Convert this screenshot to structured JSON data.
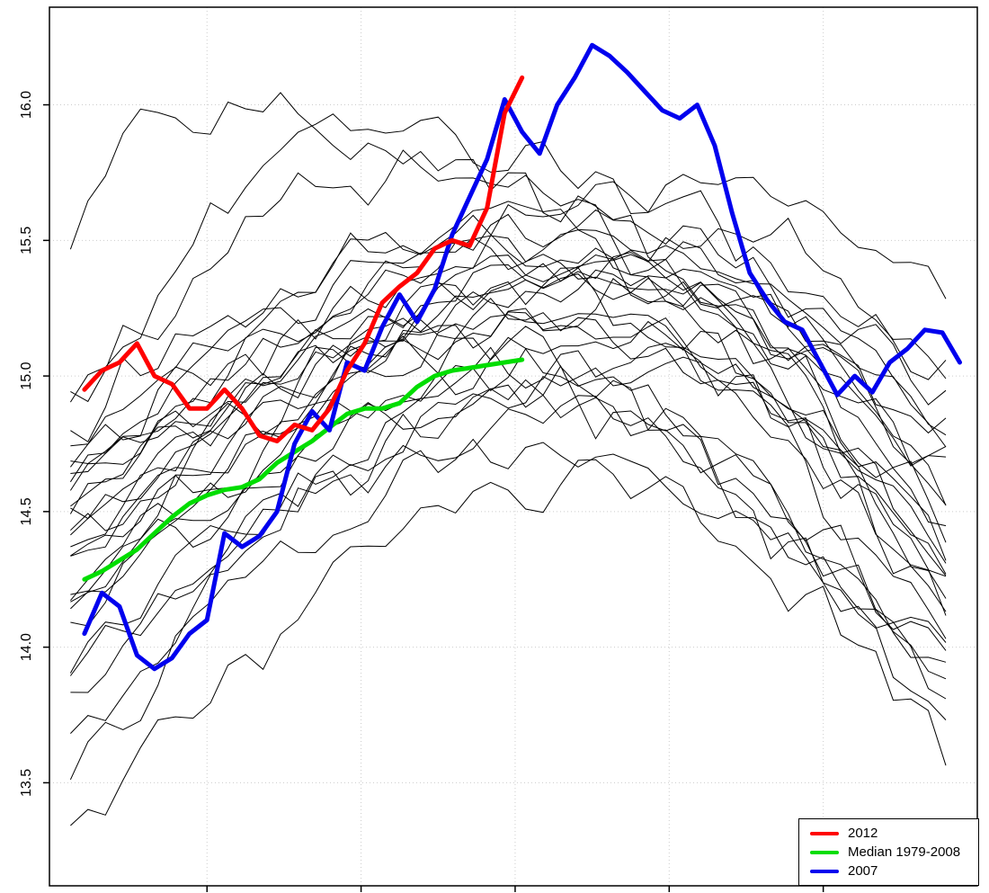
{
  "chart_data": {
    "type": "line",
    "title": "",
    "xlabel": "",
    "ylabel": "",
    "grid": true,
    "legend_position": "bottom-right",
    "x_domain_weeks": [
      0,
      53
    ],
    "y_domain": [
      13.12,
      16.36
    ],
    "y_ticks": [
      {
        "value": 13.5,
        "label": "13.5"
      },
      {
        "value": 14.0,
        "label": "14.0"
      },
      {
        "value": 14.5,
        "label": "14.5"
      },
      {
        "value": 15.0,
        "label": "15.0"
      },
      {
        "value": 15.5,
        "label": "15.5"
      },
      {
        "value": 16.0,
        "label": "16.0"
      }
    ],
    "x_ticks_weeks": [
      9,
      17.8,
      26.6,
      35.4,
      44.2
    ],
    "draw_order": [
      1,
      2,
      0
    ],
    "series": [
      {
        "name": "2012",
        "color": "#ff0000",
        "width": 5,
        "x_start_week": 2,
        "x_step": 1,
        "values": [
          14.95,
          15.02,
          15.05,
          15.12,
          15.0,
          14.97,
          14.88,
          14.88,
          14.95,
          14.88,
          14.78,
          14.76,
          14.82,
          14.8,
          14.88,
          15.02,
          15.12,
          15.27,
          15.33,
          15.38,
          15.47,
          15.5,
          15.48,
          15.62,
          15.97,
          16.1
        ]
      },
      {
        "name": "Median 1979-2008",
        "color": "#00dd00",
        "width": 5,
        "x_start_week": 2,
        "x_step": 1,
        "values": [
          14.25,
          14.28,
          14.32,
          14.36,
          14.42,
          14.48,
          14.53,
          14.56,
          14.58,
          14.59,
          14.62,
          14.68,
          14.72,
          14.76,
          14.81,
          14.86,
          14.88,
          14.88,
          14.9,
          14.96,
          15.0,
          15.02,
          15.03,
          15.04,
          15.05,
          15.06
        ]
      },
      {
        "name": "2007",
        "color": "#0000ee",
        "width": 5,
        "x_start_week": 2,
        "x_step": 1,
        "values": [
          14.05,
          14.2,
          14.15,
          13.97,
          13.92,
          13.96,
          14.05,
          14.1,
          14.42,
          14.37,
          14.41,
          14.5,
          14.75,
          14.87,
          14.8,
          15.05,
          15.02,
          15.18,
          15.3,
          15.2,
          15.32,
          15.52,
          15.66,
          15.8,
          16.02,
          15.9,
          15.82,
          16.0,
          16.1,
          16.22,
          16.18,
          16.12,
          16.05,
          15.98,
          15.95,
          16.0,
          15.85,
          15.6,
          15.38,
          15.28,
          15.2,
          15.17,
          15.05,
          14.93,
          15.0,
          14.94,
          15.05,
          15.1,
          15.17,
          15.16,
          15.05
        ]
      }
    ],
    "background_series": {
      "color": "#000000",
      "width": 1,
      "lines": [
        {
          "s": 15.5,
          "p": 16.0,
          "pw": 7,
          "e": 14.7,
          "a": 0.1,
          "seed": 1
        },
        {
          "s": 14.9,
          "p": 15.75,
          "pw": 20,
          "e": 14.4,
          "a": 0.09,
          "seed": 2
        },
        {
          "s": 14.8,
          "p": 15.5,
          "pw": 24,
          "e": 14.6,
          "a": 0.1,
          "seed": 3
        },
        {
          "s": 14.75,
          "p": 15.6,
          "pw": 28,
          "e": 14.9,
          "a": 0.08,
          "seed": 4
        },
        {
          "s": 14.7,
          "p": 15.45,
          "pw": 30,
          "e": 14.3,
          "a": 0.1,
          "seed": 5
        },
        {
          "s": 14.65,
          "p": 15.5,
          "pw": 26,
          "e": 14.2,
          "a": 0.09,
          "seed": 6
        },
        {
          "s": 14.6,
          "p": 15.35,
          "pw": 32,
          "e": 14.6,
          "a": 0.08,
          "seed": 7
        },
        {
          "s": 14.55,
          "p": 15.4,
          "pw": 34,
          "e": 14.5,
          "a": 0.09,
          "seed": 8
        },
        {
          "s": 14.5,
          "p": 15.3,
          "pw": 28,
          "e": 13.9,
          "a": 0.1,
          "seed": 9
        },
        {
          "s": 14.5,
          "p": 15.55,
          "pw": 30,
          "e": 14.8,
          "a": 0.08,
          "seed": 10
        },
        {
          "s": 14.45,
          "p": 15.2,
          "pw": 26,
          "e": 14.2,
          "a": 0.09,
          "seed": 11
        },
        {
          "s": 14.4,
          "p": 15.45,
          "pw": 33,
          "e": 14.4,
          "a": 0.08,
          "seed": 12
        },
        {
          "s": 14.4,
          "p": 15.1,
          "pw": 24,
          "e": 13.8,
          "a": 0.1,
          "seed": 13
        },
        {
          "s": 14.35,
          "p": 15.3,
          "pw": 36,
          "e": 14.7,
          "a": 0.08,
          "seed": 14
        },
        {
          "s": 14.3,
          "p": 15.2,
          "pw": 30,
          "e": 14.1,
          "a": 0.09,
          "seed": 15
        },
        {
          "s": 14.25,
          "p": 15.0,
          "pw": 28,
          "e": 13.9,
          "a": 0.1,
          "seed": 16
        },
        {
          "s": 14.2,
          "p": 15.35,
          "pw": 32,
          "e": 14.5,
          "a": 0.08,
          "seed": 17
        },
        {
          "s": 14.15,
          "p": 15.1,
          "pw": 34,
          "e": 14.0,
          "a": 0.09,
          "seed": 18
        },
        {
          "s": 14.1,
          "p": 14.95,
          "pw": 26,
          "e": 13.8,
          "a": 0.1,
          "seed": 19
        },
        {
          "s": 14.05,
          "p": 15.25,
          "pw": 30,
          "e": 14.3,
          "a": 0.08,
          "seed": 20
        },
        {
          "s": 14.0,
          "p": 15.05,
          "pw": 36,
          "e": 14.2,
          "a": 0.09,
          "seed": 21
        },
        {
          "s": 13.9,
          "p": 14.9,
          "pw": 30,
          "e": 13.75,
          "a": 0.1,
          "seed": 22
        },
        {
          "s": 13.8,
          "p": 15.15,
          "pw": 34,
          "e": 14.1,
          "a": 0.09,
          "seed": 23
        },
        {
          "s": 13.7,
          "p": 14.85,
          "pw": 28,
          "e": 13.7,
          "a": 0.1,
          "seed": 24
        },
        {
          "s": 13.55,
          "p": 14.7,
          "pw": 26,
          "e": 13.9,
          "a": 0.09,
          "seed": 25
        },
        {
          "s": 13.3,
          "p": 14.6,
          "pw": 30,
          "e": 13.6,
          "a": 0.1,
          "seed": 26
        },
        {
          "s": 14.85,
          "p": 15.9,
          "pw": 18,
          "e": 15.0,
          "a": 0.1,
          "seed": 27
        },
        {
          "s": 14.6,
          "p": 15.7,
          "pw": 38,
          "e": 15.3,
          "a": 0.08,
          "seed": 28
        },
        {
          "s": 14.4,
          "p": 15.5,
          "pw": 40,
          "e": 14.9,
          "a": 0.08,
          "seed": 29
        }
      ]
    },
    "legend": {
      "entries": [
        {
          "label": "2012",
          "color": "#ff0000"
        },
        {
          "label": "Median 1979-2008",
          "color": "#00dd00"
        },
        {
          "label": "2007",
          "color": "#0000ee"
        }
      ]
    }
  }
}
